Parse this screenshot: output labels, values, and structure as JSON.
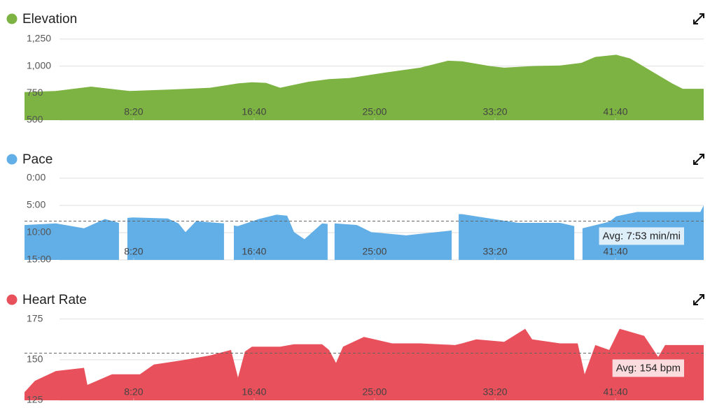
{
  "chart_data": [
    {
      "type": "area",
      "title": "Elevation",
      "color": "#7cb342",
      "x": [
        47,
        177,
        323,
        381,
        483,
        672,
        817,
        933,
        991,
        1049,
        1108,
        1224,
        1311,
        1398,
        1544,
        1689,
        1805,
        1863,
        1980,
        2038,
        2154,
        2270,
        2358,
        2416,
        2503,
        2561,
        2648,
        2735,
        2779,
        2866
      ],
      "values": [
        760,
        770,
        810,
        795,
        770,
        785,
        800,
        840,
        850,
        845,
        800,
        855,
        880,
        890,
        940,
        985,
        1050,
        1045,
        1000,
        985,
        1000,
        1005,
        1030,
        1085,
        1105,
        1070,
        955,
        840,
        790,
        790
      ],
      "xlim": [
        47,
        2866
      ],
      "xticks": [
        {
          "value": 500,
          "label": "8:20"
        },
        {
          "value": 1000,
          "label": "16:40"
        },
        {
          "value": 1500,
          "label": "25:00"
        },
        {
          "value": 2000,
          "label": "33:20"
        },
        {
          "value": 2500,
          "label": "41:40"
        }
      ],
      "ylim": [
        500,
        1340
      ],
      "yticks": [
        500,
        750,
        {
          "value": 1000,
          "label": "1,000"
        },
        {
          "value": 1250,
          "label": "1,250"
        }
      ],
      "grid": true
    },
    {
      "type": "area",
      "title": "Pace",
      "color": "#62aee6",
      "x": [
        47,
        177,
        294,
        381,
        439,
        456,
        474,
        497,
        642,
        686,
        715,
        759,
        875,
        895,
        916,
        933,
        1020,
        1093,
        1137,
        1166,
        1209,
        1282,
        1305,
        1317,
        1334,
        1427,
        1486,
        1631,
        1820,
        1834,
        1849,
        1863,
        1951,
        2096,
        2270,
        2329,
        2346,
        2363,
        2474,
        2503,
        2590,
        2852,
        2866
      ],
      "values": [
        8.6,
        8.3,
        9.2,
        7.5,
        8.2,
        null,
        7.3,
        7.2,
        7.4,
        8.3,
        9.9,
        7.9,
        8.3,
        null,
        8.7,
        8.8,
        7.5,
        6.7,
        6.9,
        9.9,
        11.2,
        8.3,
        8.4,
        null,
        8.3,
        8.6,
        9.9,
        10.5,
        9.6,
        null,
        6.6,
        6.6,
        7.2,
        8.2,
        8.2,
        8.8,
        null,
        9.2,
        8.0,
        7.0,
        6.2,
        6.2,
        5.0
      ],
      "xlim": [
        47,
        2866
      ],
      "xticks": [
        {
          "value": 500,
          "label": "8:20"
        },
        {
          "value": 1000,
          "label": "16:40"
        },
        {
          "value": 1500,
          "label": "25:00"
        },
        {
          "value": 2000,
          "label": "33:20"
        },
        {
          "value": 2500,
          "label": "41:40"
        }
      ],
      "ylim": [
        0,
        15
      ],
      "y_reversed": true,
      "yticks": [
        {
          "value": 0,
          "label": "0:00"
        },
        {
          "value": 5,
          "label": "5:00"
        },
        {
          "value": 10,
          "label": "10:00"
        },
        {
          "value": 15,
          "label": "15:00"
        }
      ],
      "grid": true,
      "average": {
        "value": 7.883,
        "label": "Avg: 7:53 min/mi"
      }
    },
    {
      "type": "area",
      "title": "Heart Rate",
      "color": "#e8505b",
      "x": [
        47,
        90,
        177,
        294,
        308,
        410,
        526,
        584,
        701,
        817,
        904,
        933,
        962,
        991,
        1108,
        1166,
        1282,
        1311,
        1340,
        1369,
        1456,
        1573,
        1689,
        1834,
        1863,
        1922,
        2038,
        2125,
        2154,
        2270,
        2343,
        2372,
        2416,
        2474,
        2517,
        2619,
        2677,
        2706,
        2866
      ],
      "values": [
        130,
        137,
        143,
        145,
        134.5,
        141,
        141,
        147,
        149.6,
        152.6,
        156,
        139,
        155,
        158,
        158,
        159.5,
        159.5,
        156,
        148,
        158,
        164,
        160,
        160,
        159,
        160,
        162.5,
        161,
        169,
        162.5,
        160,
        160,
        141,
        159,
        156,
        169,
        164.6,
        151.7,
        159,
        159
      ],
      "xlim": [
        47,
        2866
      ],
      "xticks": [
        {
          "value": 500,
          "label": "8:20"
        },
        {
          "value": 1000,
          "label": "16:40"
        },
        {
          "value": 1500,
          "label": "25:00"
        },
        {
          "value": 2000,
          "label": "33:20"
        },
        {
          "value": 2500,
          "label": "41:40"
        }
      ],
      "ylim": [
        125,
        180
      ],
      "yticks": [
        125,
        150,
        175
      ],
      "grid": true,
      "average": {
        "value": 154,
        "label": "Avg: 154 bpm"
      }
    }
  ]
}
